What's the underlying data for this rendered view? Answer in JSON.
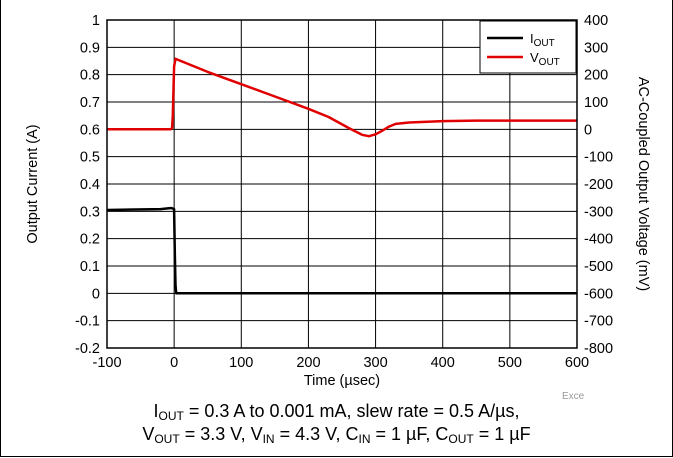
{
  "chart_data": {
    "type": "line",
    "xlabel": "Time (µsec)",
    "ylabel": "Output Current (A)",
    "y2label": "AC-Coupled Output Voltage (mV)",
    "xlim": [
      -100,
      600
    ],
    "ylim": [
      -0.2,
      1
    ],
    "y2lim": [
      -800,
      400
    ],
    "x_ticks": [
      "-100",
      "0",
      "100",
      "200",
      "300",
      "400",
      "500",
      "600"
    ],
    "y_ticks": [
      "1",
      "0.9",
      "0.8",
      "0.7",
      "0.6",
      "0.5",
      "0.4",
      "0.3",
      "0.2",
      "0.1",
      "0",
      "-0.1",
      "-0.2"
    ],
    "y2_ticks": [
      "400",
      "300",
      "200",
      "100",
      "0",
      "-100",
      "-200",
      "-300",
      "-400",
      "-500",
      "-600",
      "-700",
      "-800"
    ],
    "grid": true,
    "legend_position": "top-right",
    "series": [
      {
        "name": "IOUT",
        "label_main": "I",
        "label_sub": "OUT",
        "axis": "left",
        "color": "#000000",
        "x": [
          -100,
          -20,
          -6,
          -4,
          0,
          1,
          2,
          3,
          3.5,
          600
        ],
        "y": [
          0.305,
          0.308,
          0.312,
          0.312,
          0.308,
          0.15,
          0.03,
          0.0,
          0.0,
          0.0
        ]
      },
      {
        "name": "VOUT",
        "label_main": "V",
        "label_sub": "OUT",
        "axis": "right",
        "color": "#e00000",
        "x": [
          -100,
          -5,
          -3,
          -2,
          0,
          2,
          5,
          50,
          100,
          150,
          200,
          230,
          260,
          280,
          290,
          300,
          310,
          320,
          330,
          350,
          400,
          450,
          500,
          550,
          600
        ],
        "y": [
          0,
          0,
          5,
          50,
          230,
          258,
          255,
          210,
          165,
          120,
          75,
          45,
          5,
          -20,
          -25,
          -18,
          -5,
          10,
          20,
          25,
          30,
          32,
          32,
          32,
          32
        ]
      }
    ]
  },
  "caption": {
    "line1": [
      {
        "t": "I"
      },
      {
        "s": "OUT"
      },
      {
        "t": " = 0.3 A to 0.001 mA, slew rate = 0.5 A/µs,"
      }
    ],
    "line2": [
      {
        "t": "V"
      },
      {
        "s": "OUT"
      },
      {
        "t": " = 3.3 V, V"
      },
      {
        "s": "IN"
      },
      {
        "t": " = 4.3 V, C"
      },
      {
        "s": "IN"
      },
      {
        "t": " = 1 µF, C"
      },
      {
        "s": "OUT"
      },
      {
        "t": " = 1 µF"
      }
    ]
  },
  "watermark": "Exce"
}
